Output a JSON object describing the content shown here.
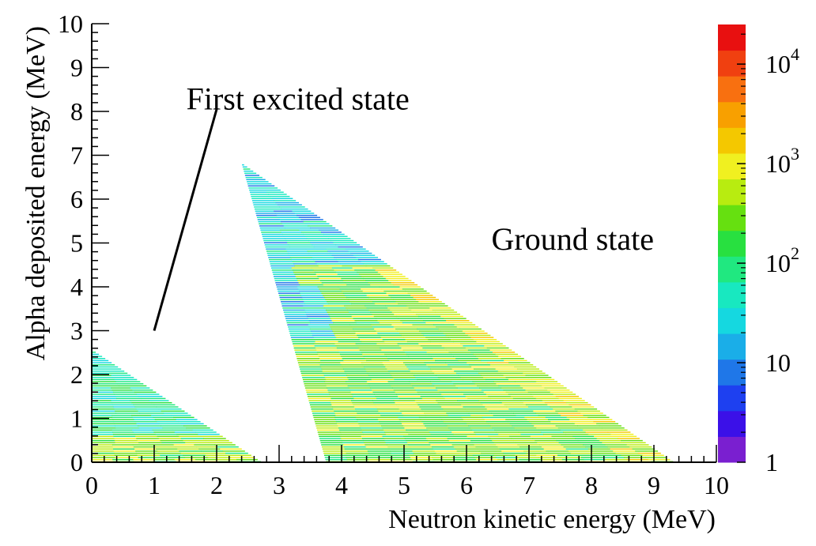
{
  "chart_data": {
    "type": "heatmap",
    "title": "",
    "xlabel": "Neutron kinetic energy (MeV)",
    "ylabel": "Alpha deposited energy (MeV)",
    "xlim": [
      0,
      10
    ],
    "ylim": [
      0,
      10
    ],
    "x_ticks": [
      "0",
      "1",
      "2",
      "3",
      "4",
      "5",
      "6",
      "7",
      "8",
      "9",
      "10"
    ],
    "y_ticks": [
      "0",
      "1",
      "2",
      "3",
      "4",
      "5",
      "6",
      "7",
      "8",
      "9",
      "10"
    ],
    "colorbar": {
      "scale": "log",
      "range": [
        1,
        25000
      ],
      "tick_values": [
        1,
        10,
        100,
        1000,
        10000
      ],
      "labels": [
        {
          "base": "1",
          "exp": ""
        },
        {
          "base": "10",
          "exp": ""
        },
        {
          "base": "10",
          "exp": "2"
        },
        {
          "base": "10",
          "exp": "3"
        },
        {
          "base": "10",
          "exp": "4"
        }
      ]
    },
    "regions": [
      {
        "alpha_max": 2.55,
        "neutron_min_at_zero": 0.0,
        "neutron_max_at_zero": 2.7,
        "neutron_at_top": 0.0
      },
      {
        "alpha_max": 6.8,
        "neutron_min_at_zero": 3.75,
        "neutron_max_at_zero": 9.3,
        "neutron_at_top": 2.4
      }
    ],
    "annotations": [
      {
        "text": "First excited state",
        "x": 3.3,
        "y": 8.3,
        "arrow_from": [
          2.0,
          8.05
        ],
        "arrow_to": [
          1.0,
          3.0
        ]
      },
      {
        "text": "Ground state",
        "x": 7.7,
        "y": 5.1
      }
    ],
    "palette": [
      "#7a1fd0",
      "#3b10e8",
      "#1e40f0",
      "#1f77e8",
      "#1aaee8",
      "#15d8e0",
      "#18e8c0",
      "#20e880",
      "#28e040",
      "#66e010",
      "#b8ec10",
      "#f0f020",
      "#f4c800",
      "#f8a000",
      "#f87010",
      "#f04010",
      "#e81010"
    ]
  }
}
